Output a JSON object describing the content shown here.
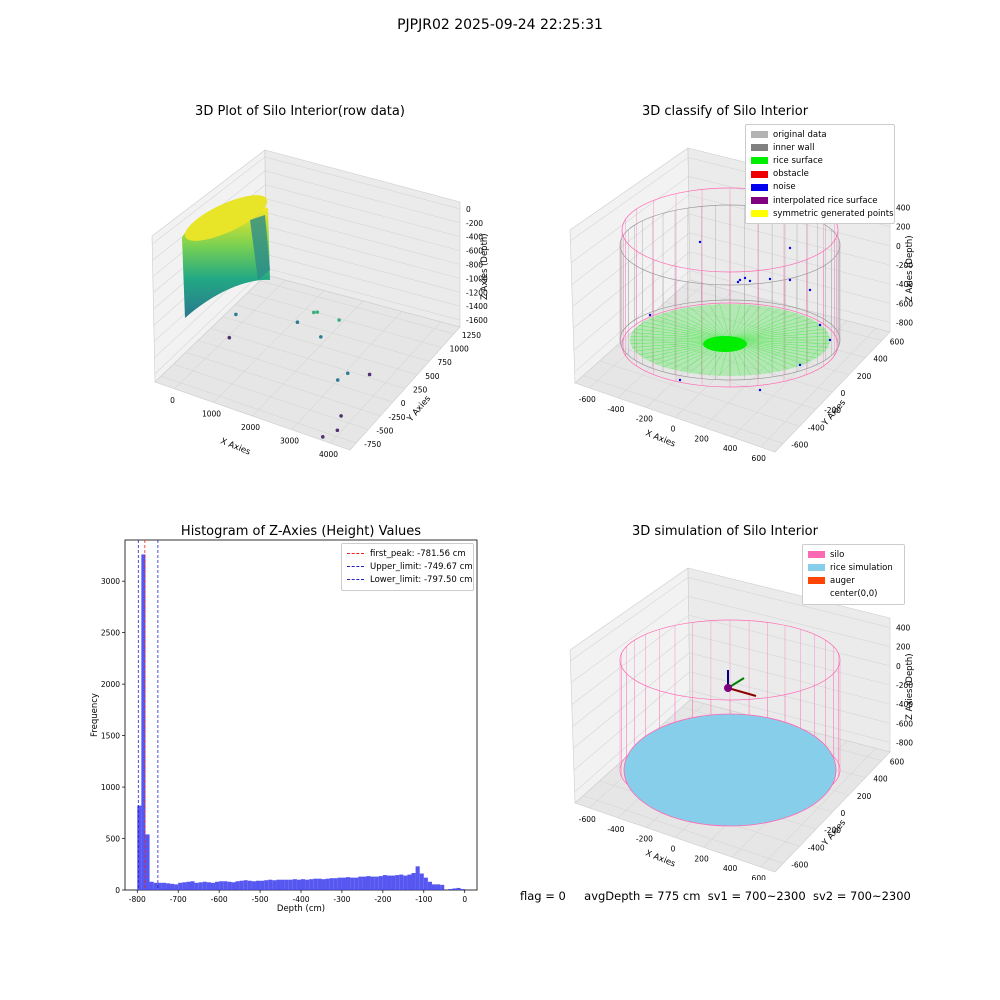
{
  "figure": {
    "suptitle": "PJPJR02 2025-09-24 22:25:31",
    "bottom_text": {
      "flag": "flag = 0",
      "avg_depth": "avgDepth = 775 cm",
      "sv1": "sv1 = 700~2300",
      "sv2": "sv2 = 700~2300"
    }
  },
  "colors": {
    "original": "#b3b3b3",
    "inner_wall": "#808080",
    "rice_surface": "#00ee00",
    "obstacle": "#ee0000",
    "noise": "#0000ee",
    "interpolated": "#800080",
    "symmetric": "#ffff00",
    "silo": "#ff69b4",
    "rice_sim": "#87ceeb",
    "auger": "#ff4500",
    "hist_bar": "#4444ee",
    "first_peak": "#ee2222",
    "limit": "#2222bb"
  },
  "chart_data": [
    {
      "type": "scatter",
      "subtype": "3d",
      "title": "3D Plot of Silo Interior(row data)",
      "xlabel": "X Axies",
      "ylabel": "Y Axies",
      "zlabel": "Z Axies (Depth)",
      "x_ticks": [
        "0",
        "1000",
        "2000",
        "3000",
        "4000"
      ],
      "y_ticks": [
        "-750",
        "-500",
        "-250",
        "0",
        "250",
        "500",
        "750",
        "1000",
        "1250"
      ],
      "z_ticks": [
        "0",
        "-200",
        "-400",
        "-600",
        "-800",
        "-1000",
        "-1200",
        "-1400",
        "-1600"
      ],
      "points": [
        {
          "x": 2300,
          "y": 300,
          "z": -1080
        },
        {
          "x": 2100,
          "y": 400,
          "z": -1200
        },
        {
          "x": 2500,
          "y": 200,
          "z": -1300
        },
        {
          "x": 2600,
          "y": 450,
          "z": -1250
        },
        {
          "x": 1800,
          "y": 350,
          "z": -1350
        },
        {
          "x": 3300,
          "y": -150,
          "z": -1450
        },
        {
          "x": 3400,
          "y": -50,
          "z": -1420
        },
        {
          "x": 3700,
          "y": 100,
          "z": -1500
        },
        {
          "x": 500,
          "y": 300,
          "z": -1450
        },
        {
          "x": 600,
          "y": 100,
          "z": -1600
        },
        {
          "x": 3800,
          "y": -500,
          "z": -1550
        },
        {
          "x": 3900,
          "y": -650,
          "z": -1600
        },
        {
          "x": 3700,
          "y": -750,
          "z": -1650
        }
      ]
    },
    {
      "type": "scatter",
      "subtype": "3d",
      "title": "3D classify of Silo Interior",
      "xlabel": "X Axies",
      "ylabel": "Y Axies",
      "zlabel": "Z Axies (Depth)",
      "x_ticks": [
        "-600",
        "-400",
        "-200",
        "0",
        "200",
        "400",
        "600"
      ],
      "y_ticks": [
        "-600",
        "-400",
        "-200",
        "0",
        "200",
        "400",
        "600"
      ],
      "z_ticks": [
        "400",
        "200",
        "0",
        "-200",
        "-400",
        "-600",
        "-800"
      ],
      "legend": [
        "original data",
        "inner wall",
        "rice surface",
        "obstacle",
        "noise",
        "interpolated rice surface",
        "symmetric generated points"
      ],
      "legend_placement": "upper-right"
    },
    {
      "type": "bar",
      "subtype": "histogram",
      "title": "Histogram of Z-Axies (Height) Values",
      "xlabel": "Depth (cm)",
      "ylabel": "Frequency",
      "xlim": [
        -830,
        30
      ],
      "ylim": [
        0,
        3400
      ],
      "x_ticks": [
        -800,
        -700,
        -600,
        -500,
        -400,
        -300,
        -200,
        -100,
        0
      ],
      "y_ticks": [
        0,
        500,
        1000,
        1500,
        2000,
        2500,
        3000
      ],
      "bin_width": 10,
      "bin_starts": [
        -800,
        -790,
        -780,
        -770,
        -760,
        -750,
        -740,
        -730,
        -720,
        -710,
        -700,
        -690,
        -680,
        -670,
        -660,
        -650,
        -640,
        -630,
        -620,
        -610,
        -600,
        -590,
        -580,
        -570,
        -560,
        -550,
        -540,
        -530,
        -520,
        -510,
        -500,
        -490,
        -480,
        -470,
        -460,
        -450,
        -440,
        -430,
        -420,
        -410,
        -400,
        -390,
        -380,
        -370,
        -360,
        -350,
        -340,
        -330,
        -320,
        -310,
        -300,
        -290,
        -280,
        -270,
        -260,
        -250,
        -240,
        -230,
        -220,
        -210,
        -200,
        -190,
        -180,
        -170,
        -160,
        -150,
        -140,
        -130,
        -120,
        -110,
        -100,
        -90,
        -80,
        -70,
        -60,
        -50,
        -40,
        -30,
        -20,
        -10
      ],
      "values": [
        820,
        3260,
        540,
        80,
        70,
        70,
        70,
        65,
        60,
        55,
        70,
        75,
        80,
        85,
        70,
        75,
        80,
        75,
        70,
        80,
        85,
        85,
        80,
        75,
        85,
        90,
        95,
        90,
        85,
        90,
        90,
        95,
        100,
        95,
        100,
        100,
        100,
        100,
        105,
        100,
        105,
        100,
        105,
        110,
        110,
        105,
        110,
        115,
        115,
        120,
        120,
        125,
        120,
        120,
        130,
        130,
        135,
        130,
        130,
        135,
        145,
        140,
        140,
        145,
        150,
        140,
        150,
        165,
        230,
        160,
        120,
        80,
        55,
        55,
        50,
        0,
        10,
        15,
        20,
        10
      ],
      "lines": [
        {
          "label": "first_peak: -781.56 cm",
          "x": -781.56,
          "color_key": "first_peak"
        },
        {
          "label": "Upper_limit: -749.67 cm",
          "x": -749.67,
          "color_key": "limit"
        },
        {
          "label": "Lower_limit: -797.50 cm",
          "x": -797.5,
          "color_key": "limit"
        }
      ],
      "legend_placement": "upper-right"
    },
    {
      "type": "scatter",
      "subtype": "3d",
      "title": "3D simulation of Silo Interior",
      "xlabel": "X Axies",
      "ylabel": "Y Axies",
      "zlabel": "Z Axies (Depth)",
      "x_ticks": [
        "-600",
        "-400",
        "-200",
        "0",
        "200",
        "400",
        "600"
      ],
      "y_ticks": [
        "-600",
        "-400",
        "-200",
        "0",
        "200",
        "400",
        "600"
      ],
      "z_ticks": [
        "400",
        "200",
        "0",
        "-200",
        "-400",
        "-600",
        "-800"
      ],
      "legend": [
        "silo",
        "rice simulation",
        "auger",
        "center(0,0)"
      ],
      "legend_placement": "upper-right"
    }
  ]
}
